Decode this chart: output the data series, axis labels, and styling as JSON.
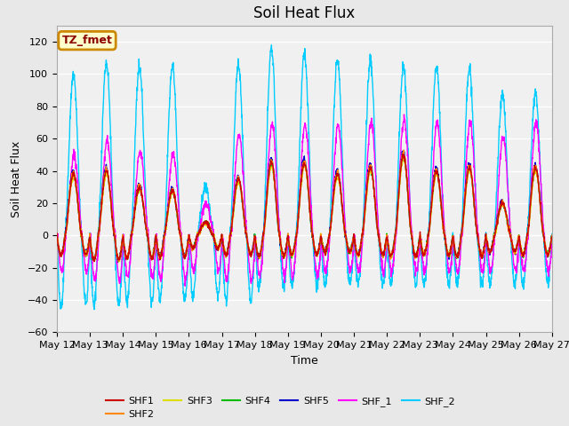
{
  "title": "Soil Heat Flux",
  "xlabel": "Time",
  "ylabel": "Soil Heat Flux",
  "ylim": [
    -60,
    130
  ],
  "yticks": [
    -60,
    -40,
    -20,
    0,
    20,
    40,
    60,
    80,
    100,
    120
  ],
  "series_colors": {
    "SHF1": "#cc0000",
    "SHF2": "#ff8800",
    "SHF3": "#dddd00",
    "SHF4": "#00bb00",
    "SHF5": "#0000cc",
    "SHF_1": "#ff00ff",
    "SHF_2": "#00ccff"
  },
  "legend_label": "TZ_fmet",
  "legend_bg": "#ffffcc",
  "legend_border": "#cc8800",
  "background_color": "#e8e8e8",
  "plot_bg": "#f0f0f0",
  "title_fontsize": 12,
  "axis_fontsize": 9,
  "tick_fontsize": 8,
  "lw": 1.0
}
